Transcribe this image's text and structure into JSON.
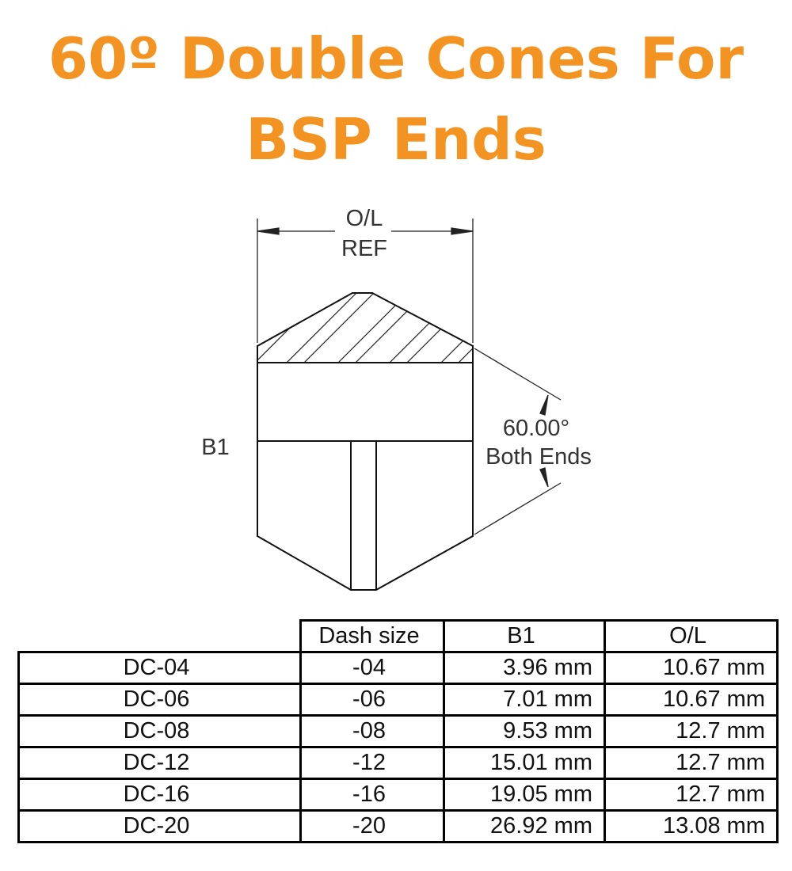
{
  "title": {
    "line1": "60º Double Cones For",
    "line2": "BSP Ends",
    "color": "#F39322"
  },
  "diagram": {
    "ol_label": "O/L",
    "ref_label": "REF",
    "b1_label": "B1",
    "angle_label": "60.00°",
    "angle_note": "Both Ends"
  },
  "table": {
    "headers": [
      "",
      "Dash size",
      "B1",
      "O/L"
    ],
    "rows": [
      [
        "DC-04",
        "-04",
        "3.96 mm",
        "10.67 mm"
      ],
      [
        "DC-06",
        "-06",
        "7.01 mm",
        "10.67 mm"
      ],
      [
        "DC-08",
        "-08",
        "9.53 mm",
        "12.7 mm"
      ],
      [
        "DC-12",
        "-12",
        "15.01 mm",
        "12.7 mm"
      ],
      [
        "DC-16",
        "-16",
        "19.05 mm",
        "12.7 mm"
      ],
      [
        "DC-20",
        "-20",
        "26.92 mm",
        "13.08 mm"
      ]
    ]
  }
}
